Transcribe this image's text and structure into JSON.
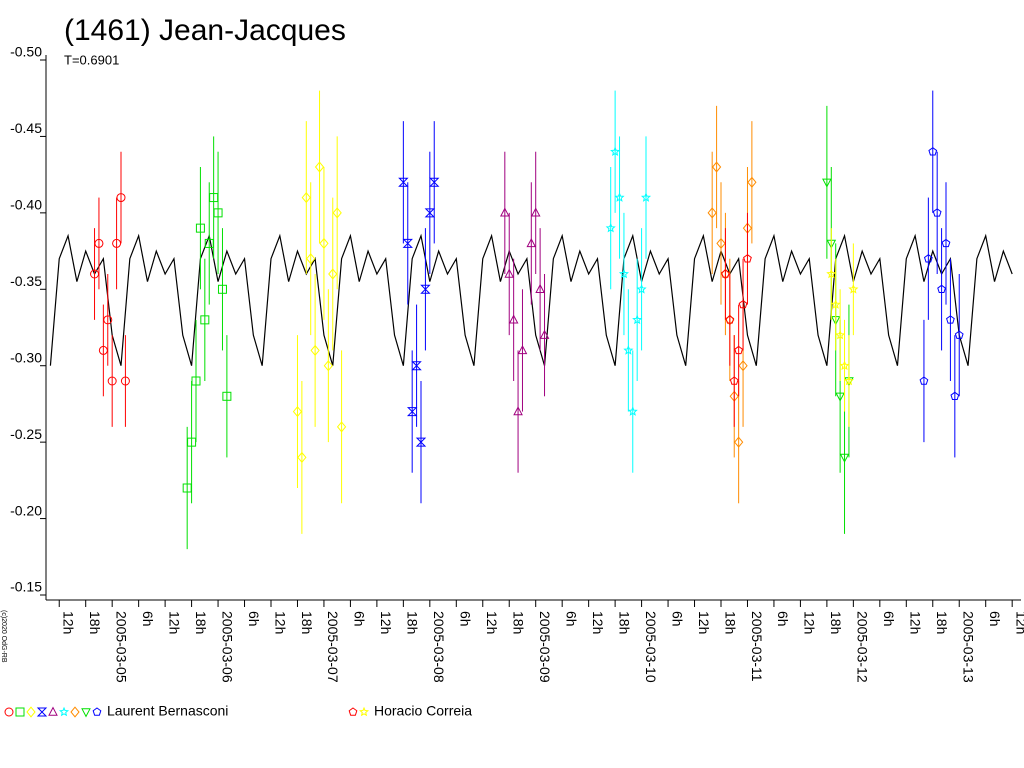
{
  "chart_data": {
    "type": "scatter",
    "title": "(1461) Jean-Jacques",
    "subtitle": "T=0.6901",
    "credit": "(c)2020 OdG-RB",
    "ylim": [
      -0.5,
      -0.15
    ],
    "y_reversed": true,
    "yticks": [
      {
        "value": -0.5,
        "label": "-0.50"
      },
      {
        "value": -0.45,
        "label": "-0.45"
      },
      {
        "value": -0.4,
        "label": "-0.40"
      },
      {
        "value": -0.35,
        "label": "-0.35"
      },
      {
        "value": -0.3,
        "label": "-0.30"
      },
      {
        "value": -0.25,
        "label": "-0.25"
      },
      {
        "value": -0.2,
        "label": "-0.20"
      },
      {
        "value": -0.15,
        "label": "-0.15"
      }
    ],
    "xlim": [
      -15,
      206
    ],
    "xticks": [
      {
        "value": -12,
        "label": "12h"
      },
      {
        "value": -6,
        "label": "18h"
      },
      {
        "value": 0,
        "label": "2005-03-05"
      },
      {
        "value": 6,
        "label": "6h"
      },
      {
        "value": 12,
        "label": "12h"
      },
      {
        "value": 18,
        "label": "18h"
      },
      {
        "value": 24,
        "label": "2005-03-06"
      },
      {
        "value": 30,
        "label": "6h"
      },
      {
        "value": 36,
        "label": "12h"
      },
      {
        "value": 42,
        "label": "18h"
      },
      {
        "value": 48,
        "label": "2005-03-07"
      },
      {
        "value": 54,
        "label": "6h"
      },
      {
        "value": 60,
        "label": "12h"
      },
      {
        "value": 66,
        "label": "18h"
      },
      {
        "value": 72,
        "label": "2005-03-08"
      },
      {
        "value": 78,
        "label": "6h"
      },
      {
        "value": 84,
        "label": "12h"
      },
      {
        "value": 90,
        "label": "18h"
      },
      {
        "value": 96,
        "label": "2005-03-09"
      },
      {
        "value": 102,
        "label": "6h"
      },
      {
        "value": 108,
        "label": "12h"
      },
      {
        "value": 114,
        "label": "18h"
      },
      {
        "value": 120,
        "label": "2005-03-10"
      },
      {
        "value": 126,
        "label": "6h"
      },
      {
        "value": 132,
        "label": "12h"
      },
      {
        "value": 138,
        "label": "18h"
      },
      {
        "value": 144,
        "label": "2005-03-11"
      },
      {
        "value": 150,
        "label": "6h"
      },
      {
        "value": 156,
        "label": "12h"
      },
      {
        "value": 162,
        "label": "18h"
      },
      {
        "value": 168,
        "label": "2005-03-12"
      },
      {
        "value": 174,
        "label": "6h"
      },
      {
        "value": 180,
        "label": "12h"
      },
      {
        "value": 186,
        "label": "18h"
      },
      {
        "value": 192,
        "label": "2005-03-13"
      },
      {
        "value": 198,
        "label": "6h"
      },
      {
        "value": 204,
        "label": "12h"
      }
    ],
    "curve": {
      "color": "#000000",
      "x": [
        -14,
        -12,
        -10,
        -8,
        -6,
        -4,
        -2,
        0,
        2,
        4,
        6,
        8,
        10,
        12,
        14,
        16,
        18,
        20,
        22,
        24,
        26,
        28,
        30,
        32,
        34,
        36,
        38,
        40,
        42,
        44,
        46,
        48,
        50,
        52,
        54,
        56,
        58,
        60,
        62,
        64,
        66,
        68,
        70,
        72,
        74,
        76,
        78,
        80,
        82,
        84,
        86,
        88,
        90,
        92,
        94,
        96,
        98,
        100,
        102,
        104,
        106,
        108,
        110,
        112,
        114,
        116,
        118,
        120,
        122,
        124,
        126,
        128,
        130,
        132,
        134,
        136,
        138,
        140,
        142,
        144,
        146,
        148,
        150,
        152,
        154,
        156,
        158,
        160,
        162,
        164,
        166,
        168,
        170,
        172,
        174,
        176,
        178,
        180,
        182,
        184,
        186,
        188,
        190,
        192,
        194,
        196,
        198,
        200,
        202,
        204
      ],
      "values": [
        -0.3,
        -0.37,
        -0.385,
        -0.355,
        -0.375,
        -0.36,
        -0.37,
        -0.32,
        -0.3,
        -0.37,
        -0.385,
        -0.355,
        -0.375,
        -0.36,
        -0.37,
        -0.32,
        -0.3,
        -0.37,
        -0.385,
        -0.355,
        -0.375,
        -0.36,
        -0.37,
        -0.32,
        -0.3,
        -0.37,
        -0.385,
        -0.355,
        -0.375,
        -0.36,
        -0.37,
        -0.32,
        -0.3,
        -0.37,
        -0.385,
        -0.355,
        -0.375,
        -0.36,
        -0.37,
        -0.32,
        -0.3,
        -0.37,
        -0.385,
        -0.355,
        -0.375,
        -0.36,
        -0.37,
        -0.32,
        -0.3,
        -0.37,
        -0.385,
        -0.355,
        -0.375,
        -0.36,
        -0.37,
        -0.32,
        -0.3,
        -0.37,
        -0.385,
        -0.355,
        -0.375,
        -0.36,
        -0.37,
        -0.32,
        -0.3,
        -0.37,
        -0.385,
        -0.355,
        -0.375,
        -0.36,
        -0.37,
        -0.32,
        -0.3,
        -0.37,
        -0.385,
        -0.355,
        -0.375,
        -0.36,
        -0.37,
        -0.32,
        -0.3,
        -0.37,
        -0.385,
        -0.355,
        -0.375,
        -0.36,
        -0.37,
        -0.32,
        -0.3,
        -0.37,
        -0.385,
        -0.355,
        -0.375,
        -0.36,
        -0.37,
        -0.32,
        -0.3,
        -0.37,
        -0.385,
        -0.355,
        -0.375,
        -0.36,
        -0.37,
        -0.32,
        -0.3,
        -0.37,
        -0.385,
        -0.355,
        -0.375,
        -0.36
      ]
    },
    "series": [
      {
        "color": "#ff0000",
        "marker": "circle",
        "error": 0.03,
        "x": [
          -4,
          -3,
          -2,
          -1,
          0,
          1,
          2,
          3
        ],
        "values": [
          -0.36,
          -0.38,
          -0.31,
          -0.33,
          -0.29,
          -0.38,
          -0.41,
          -0.29
        ]
      },
      {
        "color": "#00e000",
        "marker": "square",
        "error": 0.04,
        "x": [
          17,
          18,
          19,
          20,
          21,
          22,
          23,
          24,
          25,
          26
        ],
        "values": [
          -0.22,
          -0.25,
          -0.29,
          -0.39,
          -0.33,
          -0.38,
          -0.41,
          -0.4,
          -0.35,
          -0.28
        ]
      },
      {
        "color": "#ffff00",
        "marker": "diamond",
        "error": 0.05,
        "x": [
          42,
          43,
          44,
          45,
          46,
          47,
          48,
          49,
          50,
          51,
          52
        ],
        "values": [
          -0.27,
          -0.24,
          -0.41,
          -0.37,
          -0.31,
          -0.43,
          -0.38,
          -0.3,
          -0.36,
          -0.4,
          -0.26
        ]
      },
      {
        "color": "#0000ff",
        "marker": "hourglass",
        "error": 0.04,
        "x": [
          66,
          67,
          68,
          69,
          70,
          71,
          72,
          73
        ],
        "values": [
          -0.42,
          -0.38,
          -0.27,
          -0.3,
          -0.25,
          -0.35,
          -0.4,
          -0.42
        ]
      },
      {
        "color": "#a0007f",
        "marker": "triangle",
        "error": 0.04,
        "x": [
          89,
          90,
          91,
          92,
          93,
          95,
          96,
          97,
          98
        ],
        "values": [
          -0.4,
          -0.36,
          -0.33,
          -0.27,
          -0.31,
          -0.38,
          -0.4,
          -0.35,
          -0.32
        ]
      },
      {
        "color": "#00ffff",
        "marker": "star",
        "error": 0.04,
        "x": [
          113,
          114,
          115,
          116,
          117,
          118,
          119,
          120,
          121
        ],
        "values": [
          -0.39,
          -0.44,
          -0.41,
          -0.36,
          -0.31,
          -0.27,
          -0.33,
          -0.35,
          -0.41
        ]
      },
      {
        "color": "#ff8c00",
        "marker": "diamond",
        "error": 0.04,
        "x": [
          136,
          137,
          138,
          139,
          140,
          141,
          142,
          143,
          144,
          145
        ],
        "values": [
          -0.4,
          -0.43,
          -0.38,
          -0.36,
          -0.33,
          -0.28,
          -0.25,
          -0.3,
          -0.39,
          -0.42
        ]
      },
      {
        "color": "#00e000",
        "marker": "triangle-down",
        "error": 0.05,
        "x": [
          162,
          163,
          164,
          165,
          166,
          167
        ],
        "values": [
          -0.42,
          -0.38,
          -0.33,
          -0.28,
          -0.24,
          -0.29
        ]
      },
      {
        "color": "#0000ff",
        "marker": "pentagon",
        "error": 0.04,
        "x": [
          184,
          185,
          186,
          187,
          188,
          189,
          190,
          191,
          192
        ],
        "values": [
          -0.29,
          -0.37,
          -0.44,
          -0.4,
          -0.35,
          -0.38,
          -0.33,
          -0.28,
          -0.32
        ]
      },
      {
        "color": "#ff0000",
        "marker": "pentagon",
        "error": 0.03,
        "x": [
          139,
          140,
          141,
          142,
          143,
          144
        ],
        "values": [
          -0.36,
          -0.33,
          -0.29,
          -0.31,
          -0.34,
          -0.37
        ]
      },
      {
        "color": "#ffff00",
        "marker": "star",
        "error": 0.03,
        "x": [
          163,
          164,
          165,
          166,
          167,
          168
        ],
        "values": [
          -0.36,
          -0.34,
          -0.32,
          -0.3,
          -0.29,
          -0.35
        ]
      }
    ],
    "legend": [
      {
        "name": "Laurent Bernasconi",
        "series": [
          0,
          1,
          2,
          3,
          4,
          5,
          6,
          7,
          8
        ]
      },
      {
        "name": "Horacio Correia",
        "series": [
          9,
          10
        ]
      }
    ]
  }
}
